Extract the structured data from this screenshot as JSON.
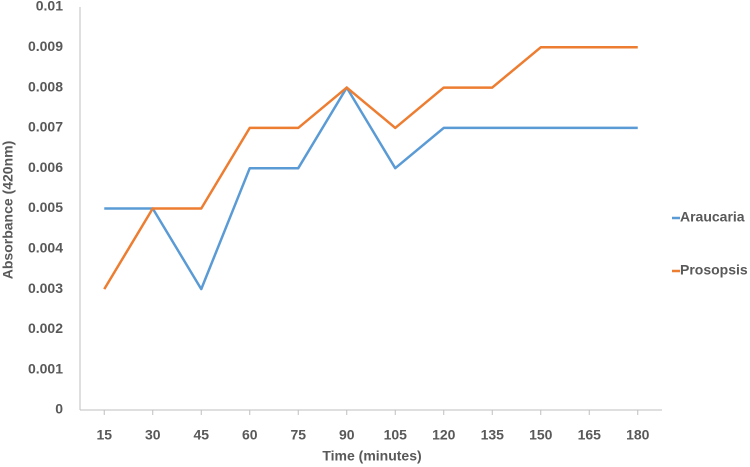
{
  "chart_data": {
    "type": "line",
    "x_label": "Time (minutes)",
    "y_label": "Absorbance (420nm)",
    "x": [
      15,
      30,
      45,
      60,
      75,
      90,
      105,
      120,
      135,
      150,
      165,
      180
    ],
    "xlim": [
      7.5,
      187.5
    ],
    "xticks": [
      15,
      30,
      45,
      60,
      75,
      90,
      105,
      120,
      135,
      150,
      165,
      180
    ],
    "ylim": [
      0,
      0.01
    ],
    "yticks": [
      0,
      0.001,
      0.002,
      0.003,
      0.004,
      0.005,
      0.006,
      0.007,
      0.008,
      0.009,
      0.01
    ],
    "grid": false,
    "legend": "right",
    "series": [
      {
        "name": "Araucaria",
        "color": "#5b9bd5",
        "values": [
          0.005,
          0.005,
          0.003,
          0.006,
          0.006,
          0.008,
          0.006,
          0.007,
          0.007,
          0.007,
          0.007,
          0.007
        ]
      },
      {
        "name": "Prosopsis",
        "color": "#ed7d31",
        "values": [
          0.003,
          0.005,
          0.005,
          0.007,
          0.007,
          0.008,
          0.007,
          0.008,
          0.008,
          0.009,
          0.009,
          0.009
        ]
      }
    ]
  }
}
